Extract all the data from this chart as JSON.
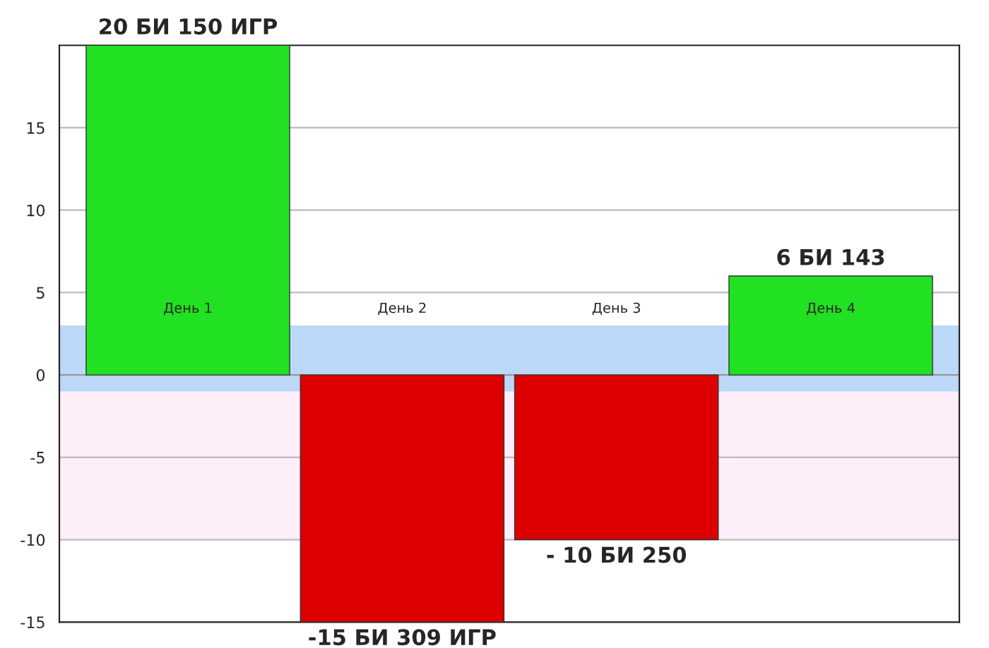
{
  "chart_data": {
    "type": "bar",
    "categories": [
      "День 1",
      "День 2",
      "День 3",
      "День 4"
    ],
    "values": [
      20,
      -15,
      -10,
      6
    ],
    "colors": [
      "#22e022",
      "#dd0000",
      "#dd0000",
      "#22e022"
    ],
    "value_labels": [
      "20 БИ 150 ИГР",
      "-15 БИ 309 ИГР",
      "- 10 БИ 250",
      "6 БИ 143"
    ],
    "ylim": [
      -15,
      20
    ],
    "yticks": [
      -15,
      -10,
      -5,
      0,
      5,
      10,
      15
    ],
    "grid": "y",
    "bands": [
      {
        "axis": "y",
        "from": -10,
        "to": 0,
        "color": "#fdeefa"
      },
      {
        "axis": "y",
        "from": -1,
        "to": 3,
        "color": "#bcd8f8"
      }
    ]
  }
}
